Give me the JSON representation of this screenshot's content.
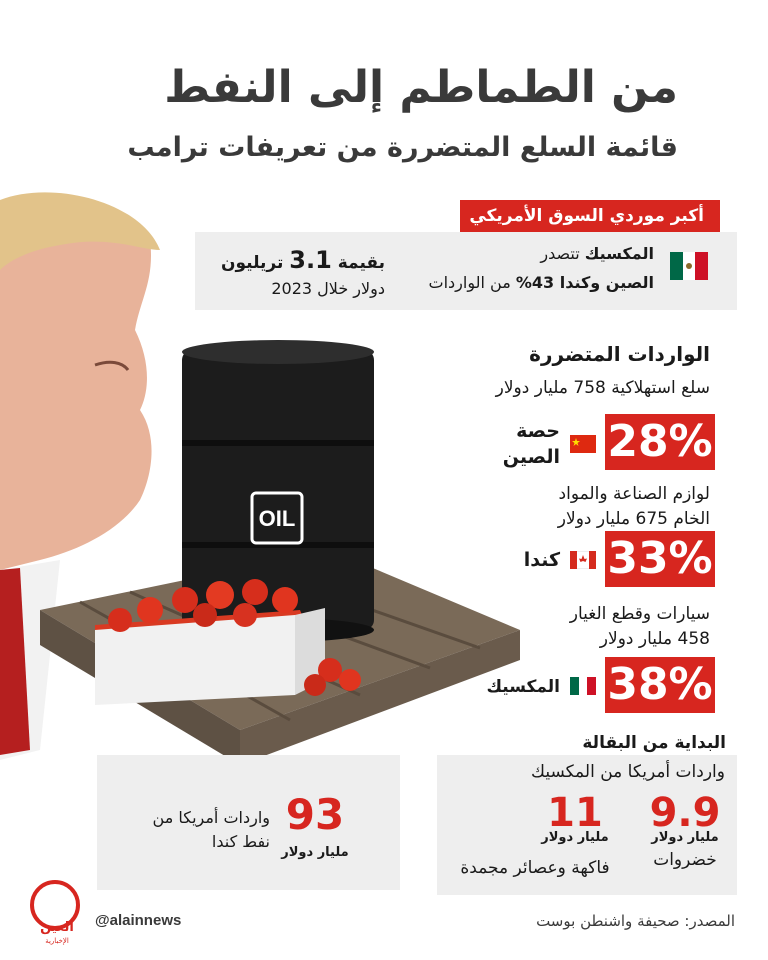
{
  "header": {
    "title": "من الطماطم إلى النفط",
    "subtitle": "قائمة السلع المتضررة من تعريفات ترامب"
  },
  "suppliers": {
    "banner": "أكبر موردي السوق الأمريكي",
    "line1_bold": "المكسيك",
    "line1_rest": " تتصدر",
    "line2_bold": "الصين وكندا 43%",
    "line2_rest": " من الواردات",
    "value_prefix": "بقيمة",
    "value_number": "3.1",
    "value_unit": "تريليون",
    "value_line2": "دولار خلال 2023"
  },
  "affected": {
    "heading": "الواردات المتضررة",
    "items": [
      {
        "desc_line1": "سلع استهلاكية 758 مليار دولار",
        "desc_line2": "",
        "percent": "28%",
        "country_line1": "حصة",
        "country_line2": "الصين",
        "flag": "china-flag"
      },
      {
        "desc_line1": "لوازم الصناعة والمواد",
        "desc_line2": "الخام 675 مليار دولار",
        "percent": "33%",
        "country_line1": "كندا",
        "country_line2": "",
        "flag": "canada-flag"
      },
      {
        "desc_line1": "سيارات وقطع الغيار",
        "desc_line2": "458 مليار دولار",
        "percent": "38%",
        "country_line1": "المكسيك",
        "country_line2": "",
        "flag": "mexico-flag"
      }
    ]
  },
  "grocery": {
    "heading": "البداية من البقالة",
    "subheading": "واردات أمريكا من المكسيك",
    "items": [
      {
        "value": "9.9",
        "unit": "مليار دولار",
        "label": "خضروات"
      },
      {
        "value": "11",
        "unit": "مليار دولار",
        "label": "فاكهة وعصائر مجمدة"
      }
    ]
  },
  "oil": {
    "value": "93",
    "unit": "مليار دولار",
    "label_line1": "واردات أمريكا من",
    "label_line2": "نفط كندا"
  },
  "barrel_label": "OIL",
  "footer": {
    "source": "المصدر: صحيفة واشنطن بوست",
    "handle": "@alainnews",
    "logo_text": "العين",
    "logo_sub": "الإخبارية"
  },
  "colors": {
    "accent": "#d7261f",
    "panel": "#eeeeee",
    "text": "#3a3a3a"
  }
}
